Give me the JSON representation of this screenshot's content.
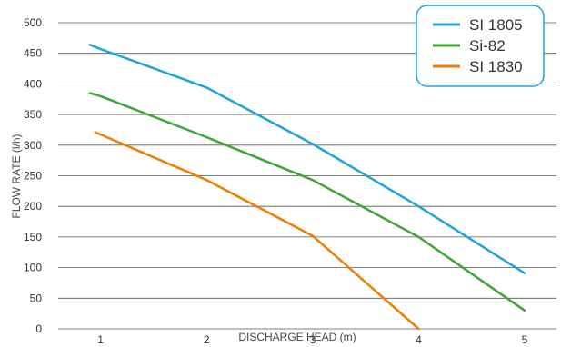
{
  "chart_data": {
    "type": "line",
    "title": "",
    "xlabel": "DISCHARGE HEAD  (m)",
    "ylabel": "FLOW RATE (l/h)",
    "x": [
      1,
      2,
      3,
      4,
      5
    ],
    "x_ticks": [
      "1",
      "2",
      "3",
      "4",
      "5"
    ],
    "xlim": [
      0.6,
      5.3
    ],
    "ylim": [
      0,
      500
    ],
    "y_ticks": [
      0,
      50,
      100,
      150,
      200,
      250,
      300,
      350,
      400,
      450,
      500
    ],
    "grid": "horizontal",
    "legend_position": "top-right",
    "series": [
      {
        "name": "SI 1805",
        "color": "#1ea3dc",
        "points": [
          [
            0.9,
            464
          ],
          [
            1.0,
            457
          ],
          [
            2.0,
            394
          ],
          [
            3.0,
            302
          ],
          [
            4.0,
            200
          ],
          [
            5.0,
            91
          ]
        ]
      },
      {
        "name": "Si-82",
        "color": "#3fa535",
        "points": [
          [
            0.9,
            385
          ],
          [
            1.0,
            380
          ],
          [
            2.0,
            313
          ],
          [
            3.0,
            243
          ],
          [
            4.0,
            150
          ],
          [
            5.0,
            30
          ]
        ]
      },
      {
        "name": "SI 1830",
        "color": "#f07d00",
        "points": [
          [
            0.95,
            321
          ],
          [
            2.0,
            243
          ],
          [
            3.0,
            152
          ],
          [
            4.0,
            0
          ]
        ]
      }
    ],
    "colors": {
      "grid": "#555555",
      "legend_border": "#1ea3dc"
    }
  }
}
